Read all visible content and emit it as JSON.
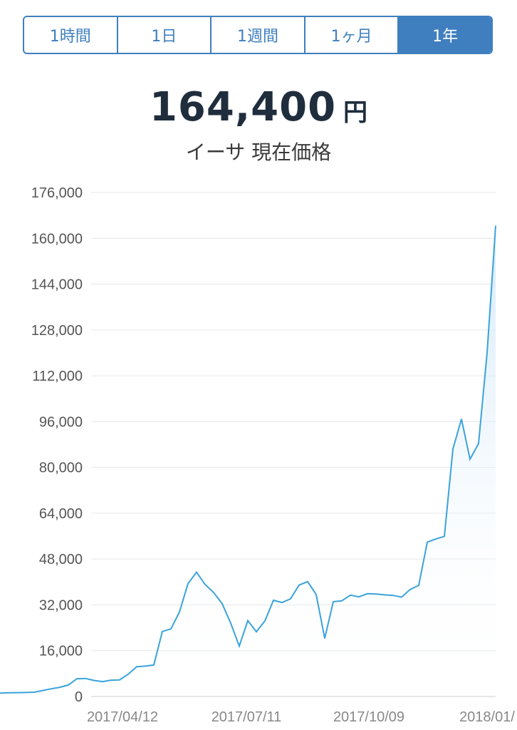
{
  "tabs": [
    {
      "label": "1時間",
      "active": false
    },
    {
      "label": "1日",
      "active": false
    },
    {
      "label": "1週間",
      "active": false
    },
    {
      "label": "1ヶ月",
      "active": false
    },
    {
      "label": "1年",
      "active": true
    }
  ],
  "price": {
    "value": "164,400",
    "unit": "円"
  },
  "subtitle": "イーサ 現在価格",
  "colors": {
    "accent": "#3f7fbf",
    "line": "#3aa3db",
    "fill": "#d6ecfa"
  },
  "chart_data": {
    "type": "area",
    "ylim": [
      0,
      176000
    ],
    "y_ticks": [
      "176,000",
      "160,000",
      "144,000",
      "128,000",
      "112,000",
      "96,000",
      "80,000",
      "64,000",
      "48,000",
      "32,000",
      "16,000",
      "0"
    ],
    "x_ticks": [
      "2017/04/12",
      "2017/07/11",
      "2017/10/09",
      "2018/01/"
    ],
    "grid": true,
    "series": [
      {
        "values": [
          1200,
          1300,
          1350,
          1400,
          1500,
          2100,
          2700,
          3200,
          4000,
          6200,
          6300,
          5600,
          5200,
          5700,
          5800,
          7800,
          10400,
          10600,
          11000,
          22700,
          23600,
          29500,
          39400,
          43400,
          39100,
          36300,
          32400,
          25600,
          17600,
          26500,
          22600,
          26400,
          33600,
          32800,
          34100,
          38900,
          40100,
          35600,
          20300,
          33100,
          33400,
          35400,
          34800,
          35900,
          35800,
          35500,
          35300,
          34700,
          37400,
          38800,
          53900,
          55000,
          55900,
          86400,
          96900,
          82900,
          88300,
          120000,
          164400
        ]
      }
    ]
  }
}
